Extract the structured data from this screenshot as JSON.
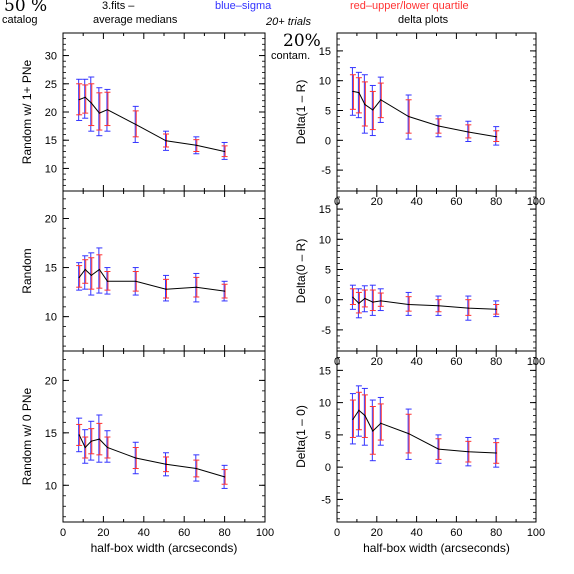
{
  "header": {
    "percent": "50 %",
    "catalog": "catalog",
    "file": "3.fits  –",
    "medians": "average medians",
    "blue_label": "blue–sigma",
    "red_label": "red–upper/lower quartile",
    "trials": "20+ trials",
    "contam_pct": "20%",
    "contam": "contam.",
    "delta_title": "delta plots"
  },
  "colors": {
    "line": "#000000",
    "sigma": "#3333ff",
    "quartile": "#ff3333",
    "axis": "#000000"
  },
  "x_axis": {
    "label": "half-box width (arcseconds)",
    "ticks": [
      0,
      20,
      40,
      60,
      80,
      100
    ],
    "range": [
      0,
      100
    ]
  },
  "chart_data": [
    {
      "type": "line",
      "ylabel": "Random w/ 1+ PNe",
      "ylim": [
        6,
        34
      ],
      "yticks": [
        10,
        15,
        20,
        25,
        30
      ],
      "show_xticklabels": false,
      "x": [
        8,
        11,
        14,
        18,
        22,
        36,
        51,
        66,
        80
      ],
      "y": [
        22.2,
        22.6,
        21.6,
        19.8,
        20.4,
        17.8,
        14.9,
        14.1,
        13.0
      ],
      "sigma": [
        [
          18.5,
          25.8
        ],
        [
          18.9,
          25.8
        ],
        [
          16.6,
          26.2
        ],
        [
          15.8,
          24.3
        ],
        [
          16.6,
          24.0
        ],
        [
          14.6,
          21.0
        ],
        [
          13.2,
          16.6
        ],
        [
          12.6,
          15.6
        ],
        [
          11.6,
          14.6
        ]
      ],
      "quartile": [
        [
          19.5,
          25.0
        ],
        [
          19.8,
          24.8
        ],
        [
          17.6,
          25.0
        ],
        [
          16.8,
          23.4
        ],
        [
          17.6,
          23.5
        ],
        [
          15.6,
          20.2
        ],
        [
          13.8,
          16.1
        ],
        [
          13.0,
          15.1
        ],
        [
          12.1,
          14.0
        ]
      ]
    },
    {
      "type": "line",
      "ylabel": "Delta(1 – R)",
      "ylim": [
        -8.5,
        18
      ],
      "yticks": [
        -5,
        0,
        5,
        10,
        15
      ],
      "show_xticklabels": true,
      "x": [
        8,
        11,
        14,
        18,
        22,
        36,
        51,
        66,
        80
      ],
      "y": [
        8.2,
        8.0,
        6.0,
        5.1,
        6.8,
        4.0,
        2.4,
        1.4,
        0.6
      ],
      "sigma": [
        [
          4.2,
          12.2
        ],
        [
          3.8,
          11.4
        ],
        [
          1.2,
          11.0
        ],
        [
          0.8,
          9.2
        ],
        [
          3.0,
          10.6
        ],
        [
          0.2,
          7.6
        ],
        [
          0.6,
          4.1
        ],
        [
          -0.2,
          3.2
        ],
        [
          -0.8,
          2.3
        ]
      ],
      "quartile": [
        [
          5.2,
          11.0
        ],
        [
          4.6,
          10.5
        ],
        [
          2.4,
          9.8
        ],
        [
          1.8,
          8.2
        ],
        [
          3.8,
          9.6
        ],
        [
          1.2,
          6.8
        ],
        [
          1.2,
          3.6
        ],
        [
          0.4,
          2.6
        ],
        [
          -0.2,
          1.6
        ]
      ]
    },
    {
      "type": "line",
      "ylabel": "Random",
      "ylim": [
        6.5,
        22.8
      ],
      "yticks": [
        10,
        15,
        20
      ],
      "show_xticklabels": false,
      "x": [
        8,
        11,
        14,
        18,
        22,
        36,
        51,
        66,
        80
      ],
      "y": [
        14.0,
        14.8,
        14.2,
        14.8,
        13.6,
        13.6,
        12.8,
        13.0,
        12.6
      ],
      "sigma": [
        [
          12.7,
          15.5
        ],
        [
          12.8,
          16.2
        ],
        [
          12.2,
          16.5
        ],
        [
          12.4,
          17.0
        ],
        [
          12.3,
          15.0
        ],
        [
          12.2,
          15.0
        ],
        [
          11.6,
          14.2
        ],
        [
          11.5,
          14.4
        ],
        [
          11.6,
          13.6
        ]
      ],
      "quartile": [
        [
          13.0,
          15.2
        ],
        [
          13.4,
          15.8
        ],
        [
          12.8,
          16.0
        ],
        [
          12.9,
          16.3
        ],
        [
          12.7,
          14.6
        ],
        [
          12.6,
          14.6
        ],
        [
          11.9,
          13.8
        ],
        [
          12.0,
          14.0
        ],
        [
          11.9,
          13.3
        ]
      ]
    },
    {
      "type": "line",
      "ylabel": "Delta(0 – R)",
      "ylim": [
        -8.5,
        18
      ],
      "yticks": [
        -5,
        0,
        5,
        10,
        15
      ],
      "show_xticklabels": true,
      "x": [
        8,
        11,
        14,
        18,
        22,
        36,
        51,
        66,
        80
      ],
      "y": [
        0.4,
        -0.6,
        0.2,
        -0.4,
        -0.2,
        -0.8,
        -1.0,
        -1.4,
        -1.6
      ],
      "sigma": [
        [
          -1.6,
          2.4
        ],
        [
          -3.0,
          1.8
        ],
        [
          -2.0,
          2.3
        ],
        [
          -2.6,
          2.4
        ],
        [
          -1.8,
          1.8
        ],
        [
          -2.6,
          1.2
        ],
        [
          -2.6,
          0.6
        ],
        [
          -3.4,
          0.6
        ],
        [
          -2.8,
          -0.2
        ]
      ],
      "quartile": [
        [
          -0.8,
          1.8
        ],
        [
          -2.2,
          1.2
        ],
        [
          -1.2,
          1.6
        ],
        [
          -1.8,
          1.6
        ],
        [
          -1.1,
          1.1
        ],
        [
          -1.9,
          0.5
        ],
        [
          -2.0,
          0.0
        ],
        [
          -2.6,
          0.0
        ],
        [
          -2.4,
          -0.8
        ]
      ]
    },
    {
      "type": "line",
      "ylabel": "Random w/ 0 PNe",
      "ylim": [
        6.5,
        22.8
      ],
      "yticks": [
        10,
        15,
        20
      ],
      "show_xticklabels": true,
      "x": [
        8,
        11,
        14,
        18,
        22,
        36,
        51,
        66,
        80
      ],
      "y": [
        14.8,
        13.6,
        14.2,
        14.4,
        13.6,
        12.6,
        12.0,
        11.6,
        10.8
      ],
      "sigma": [
        [
          13.2,
          16.4
        ],
        [
          12.1,
          15.3
        ],
        [
          12.4,
          16.1
        ],
        [
          12.2,
          16.7
        ],
        [
          12.2,
          15.2
        ],
        [
          11.1,
          14.1
        ],
        [
          10.9,
          13.1
        ],
        [
          10.4,
          12.9
        ],
        [
          9.7,
          11.9
        ]
      ],
      "quartile": [
        [
          13.8,
          15.8
        ],
        [
          12.6,
          14.6
        ],
        [
          13.0,
          15.4
        ],
        [
          12.9,
          15.9
        ],
        [
          12.6,
          14.6
        ],
        [
          11.6,
          13.6
        ],
        [
          11.3,
          12.7
        ],
        [
          10.8,
          12.4
        ],
        [
          10.1,
          11.5
        ]
      ]
    },
    {
      "type": "line",
      "ylabel": "Delta(1 – 0)",
      "ylim": [
        -8.5,
        18
      ],
      "yticks": [
        -5,
        0,
        5,
        10,
        15
      ],
      "show_xticklabels": true,
      "x": [
        8,
        11,
        14,
        18,
        22,
        36,
        51,
        66,
        80
      ],
      "y": [
        7.4,
        8.8,
        8.0,
        5.6,
        6.8,
        5.2,
        2.8,
        2.4,
        2.2
      ],
      "sigma": [
        [
          3.6,
          11.4
        ],
        [
          4.8,
          12.6
        ],
        [
          3.4,
          12.2
        ],
        [
          1.0,
          10.4
        ],
        [
          3.4,
          10.8
        ],
        [
          1.2,
          9.0
        ],
        [
          0.6,
          5.0
        ],
        [
          0.2,
          4.6
        ],
        [
          0.0,
          4.4
        ]
      ],
      "quartile": [
        [
          4.6,
          10.4
        ],
        [
          5.8,
          11.6
        ],
        [
          4.6,
          11.2
        ],
        [
          2.0,
          9.4
        ],
        [
          4.2,
          9.8
        ],
        [
          2.2,
          8.2
        ],
        [
          1.2,
          4.4
        ],
        [
          0.8,
          4.0
        ],
        [
          0.6,
          3.8
        ]
      ]
    }
  ]
}
